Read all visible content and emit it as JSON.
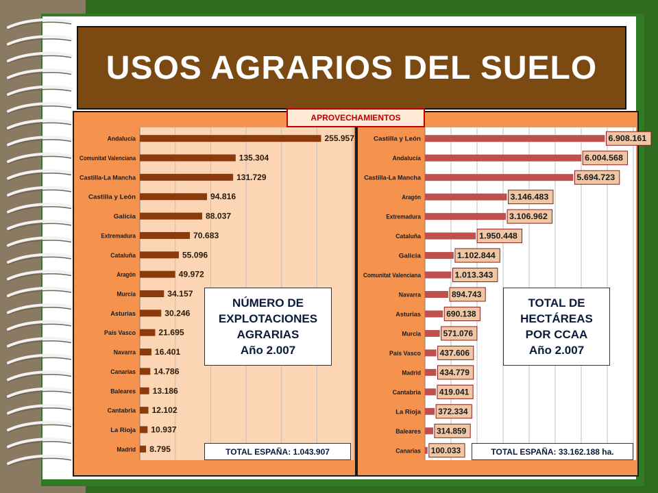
{
  "title": "USOS AGRARIOS DEL SUELO",
  "tag": "APROVECHAMIENTOS",
  "left_box": {
    "lines": [
      "NÚMERO DE",
      "EXPLOTACIONES",
      "AGRARIAS",
      "Año 2.007"
    ],
    "total": "TOTAL ESPAÑA: 1.043.907"
  },
  "right_box": {
    "lines": [
      "TOTAL DE",
      "HECTÁREAS",
      "POR CCAA",
      "Año 2.007"
    ],
    "total": "TOTAL ESPAÑA: 33.162.188 ha."
  },
  "colors": {
    "left_bar": "#8b3a0b",
    "right_bar": "#c0504d",
    "left_plot_bg": "#fcd5b4",
    "right_plot_bg": "#ffffff"
  },
  "chart_data": [
    {
      "type": "bar",
      "orientation": "horizontal",
      "categories": [
        "Andalucía",
        "Comunitat Valenciana",
        "Castilla-La Mancha",
        "Castilla y León",
        "Galicia",
        "Extremadura",
        "Cataluña",
        "Aragón",
        "Murcia",
        "Asturias",
        "País Vasco",
        "Navarra",
        "Canarias",
        "Baleares",
        "Cantabria",
        "La Rioja",
        "Madrid"
      ],
      "values": [
        255957,
        135304,
        131729,
        94816,
        88037,
        70683,
        55096,
        49972,
        34157,
        30246,
        21695,
        16401,
        14786,
        13186,
        12102,
        10937,
        8795
      ],
      "labels": [
        "255.957",
        "135.304",
        "131.729",
        "94.816",
        "88.037",
        "70.683",
        "55.096",
        "49.972",
        "34.157",
        "30.246",
        "21.695",
        "16.401",
        "14.786",
        "13.186",
        "12.102",
        "10.937",
        "8.795"
      ],
      "xlim": [
        0,
        300000
      ],
      "grid": true
    },
    {
      "type": "bar",
      "orientation": "horizontal",
      "categories": [
        "Castilla y León",
        "Andalucía",
        "Castilla-La Mancha",
        "Aragón",
        "Extremadura",
        "Cataluña",
        "Galicia",
        "Comunitat Valenciana",
        "Navarra",
        "Asturias",
        "Murcia",
        "País Vasco",
        "Madrid",
        "Cantabria",
        "La Rioja",
        "Baleares",
        "Canarias"
      ],
      "values": [
        6908161,
        6004568,
        5694723,
        3146483,
        3106962,
        1950448,
        1102844,
        1013343,
        894743,
        690138,
        571076,
        437606,
        434779,
        419041,
        372334,
        314859,
        100033
      ],
      "labels": [
        "6.908.161",
        "6.004.568",
        "5.694.723",
        "3.146.483",
        "3.106.962",
        "1.950.448",
        "1.102.844",
        "1.013.343",
        "894.743",
        "690.138",
        "571.076",
        "437.606",
        "434.779",
        "419.041",
        "372.334",
        "314.859",
        "100.033"
      ],
      "xlim": [
        0,
        8000000
      ],
      "grid": true
    }
  ]
}
